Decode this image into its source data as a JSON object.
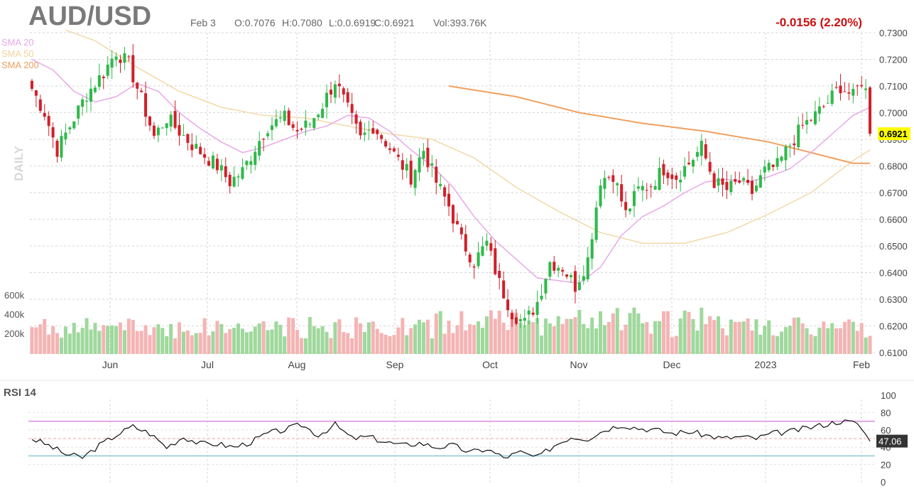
{
  "header": {
    "symbol": "AUD/USD",
    "date": "Feb 3",
    "open": "O:0.7076",
    "high": "H:0.7080",
    "low": "L:0.0.6919",
    "close": "C:0.6921",
    "volume": "Vol:393.76K",
    "change": "-0.0156 (2.20%)",
    "timeframe": "DAILY"
  },
  "legend": [
    {
      "label": "SMA 20",
      "color": "#e8a8e8"
    },
    {
      "label": "SMA 50",
      "color": "#f2d9a8"
    },
    {
      "label": "SMA 200",
      "color": "#f0a060"
    }
  ],
  "colors": {
    "up": "#2fb84a",
    "down": "#d0202a",
    "vol_up": "#9fd89c",
    "vol_down": "#f4b4b4",
    "rsi_line": "#111111",
    "rsi_overbought": "#d98de0",
    "rsi_oversold": "#8cc8d8",
    "last_price_bg": "#ffff00",
    "change_text": "#cc1111"
  },
  "volume_axis": [
    "600k",
    "400k",
    "200k"
  ],
  "rsi": {
    "title": "RSI 14",
    "last_value": "47.06",
    "levels": [
      "100",
      "80",
      "60",
      "40",
      "20",
      "0"
    ]
  },
  "chart_data": {
    "type": "candlestick",
    "title": "AUD/USD",
    "ylim": [
      0.61,
      0.73
    ],
    "y_ticks": [
      "0.7300",
      "0.7200",
      "0.7100",
      "0.7000",
      "0.6900",
      "0.6800",
      "0.6700",
      "0.6600",
      "0.6500",
      "0.6400",
      "0.6300",
      "0.6200",
      "0.6100"
    ],
    "last_price": "0.6921",
    "x_labels": [
      "Jun",
      "Jul",
      "Aug",
      "Sep",
      "Oct",
      "Nov",
      "Dec",
      "2023",
      "Feb"
    ],
    "close_path": [
      [
        0,
        0.709
      ],
      [
        3,
        0.7
      ],
      [
        6,
        0.686
      ],
      [
        9,
        0.695
      ],
      [
        13,
        0.707
      ],
      [
        17,
        0.715
      ],
      [
        20,
        0.723
      ],
      [
        23,
        0.718
      ],
      [
        26,
        0.705
      ],
      [
        29,
        0.691
      ],
      [
        32,
        0.698
      ],
      [
        35,
        0.693
      ],
      [
        38,
        0.688
      ],
      [
        41,
        0.684
      ],
      [
        44,
        0.68
      ],
      [
        47,
        0.674
      ],
      [
        50,
        0.678
      ],
      [
        53,
        0.687
      ],
      [
        56,
        0.695
      ],
      [
        60,
        0.698
      ],
      [
        63,
        0.693
      ],
      [
        66,
        0.696
      ],
      [
        69,
        0.703
      ],
      [
        72,
        0.712
      ],
      [
        75,
        0.701
      ],
      [
        78,
        0.69
      ],
      [
        81,
        0.695
      ],
      [
        84,
        0.689
      ],
      [
        87,
        0.682
      ],
      [
        90,
        0.676
      ],
      [
        93,
        0.686
      ],
      [
        96,
        0.674
      ],
      [
        99,
        0.665
      ],
      [
        102,
        0.652
      ],
      [
        105,
        0.644
      ],
      [
        108,
        0.651
      ],
      [
        111,
        0.636
      ],
      [
        114,
        0.625
      ],
      [
        117,
        0.621
      ],
      [
        120,
        0.629
      ],
      [
        123,
        0.644
      ],
      [
        126,
        0.642
      ],
      [
        129,
        0.635
      ],
      [
        132,
        0.645
      ],
      [
        135,
        0.675
      ],
      [
        138,
        0.677
      ],
      [
        141,
        0.662
      ],
      [
        144,
        0.671
      ],
      [
        147,
        0.673
      ],
      [
        150,
        0.679
      ],
      [
        153,
        0.676
      ],
      [
        156,
        0.681
      ],
      [
        159,
        0.687
      ],
      [
        162,
        0.674
      ],
      [
        165,
        0.671
      ],
      [
        168,
        0.674
      ],
      [
        171,
        0.67
      ],
      [
        174,
        0.678
      ],
      [
        177,
        0.68
      ],
      [
        180,
        0.688
      ],
      [
        183,
        0.695
      ],
      [
        186,
        0.699
      ],
      [
        189,
        0.704
      ],
      [
        192,
        0.71
      ],
      [
        195,
        0.706
      ],
      [
        197,
        0.712
      ],
      [
        198,
        0.708
      ],
      [
        199,
        0.6921
      ]
    ],
    "sma20": [
      [
        0,
        0.72
      ],
      [
        5,
        0.716
      ],
      [
        10,
        0.708
      ],
      [
        15,
        0.704
      ],
      [
        20,
        0.706
      ],
      [
        25,
        0.711
      ],
      [
        30,
        0.708
      ],
      [
        35,
        0.7
      ],
      [
        40,
        0.694
      ],
      [
        45,
        0.689
      ],
      [
        50,
        0.685
      ],
      [
        55,
        0.687
      ],
      [
        60,
        0.69
      ],
      [
        65,
        0.693
      ],
      [
        70,
        0.695
      ],
      [
        75,
        0.699
      ],
      [
        80,
        0.698
      ],
      [
        85,
        0.693
      ],
      [
        90,
        0.686
      ],
      [
        95,
        0.68
      ],
      [
        100,
        0.672
      ],
      [
        105,
        0.661
      ],
      [
        110,
        0.652
      ],
      [
        115,
        0.645
      ],
      [
        120,
        0.638
      ],
      [
        125,
        0.637
      ],
      [
        130,
        0.636
      ],
      [
        135,
        0.642
      ],
      [
        140,
        0.654
      ],
      [
        145,
        0.661
      ],
      [
        150,
        0.665
      ],
      [
        155,
        0.67
      ],
      [
        160,
        0.674
      ],
      [
        165,
        0.675
      ],
      [
        170,
        0.674
      ],
      [
        175,
        0.676
      ],
      [
        180,
        0.679
      ],
      [
        185,
        0.685
      ],
      [
        190,
        0.692
      ],
      [
        195,
        0.699
      ],
      [
        199,
        0.702
      ]
    ],
    "sma50": [
      [
        8,
        0.731
      ],
      [
        15,
        0.727
      ],
      [
        25,
        0.717
      ],
      [
        35,
        0.708
      ],
      [
        45,
        0.702
      ],
      [
        55,
        0.699
      ],
      [
        65,
        0.698
      ],
      [
        75,
        0.695
      ],
      [
        85,
        0.692
      ],
      [
        95,
        0.69
      ],
      [
        105,
        0.683
      ],
      [
        115,
        0.672
      ],
      [
        125,
        0.663
      ],
      [
        135,
        0.655
      ],
      [
        145,
        0.651
      ],
      [
        155,
        0.651
      ],
      [
        165,
        0.655
      ],
      [
        175,
        0.662
      ],
      [
        185,
        0.67
      ],
      [
        195,
        0.682
      ],
      [
        199,
        0.686
      ]
    ],
    "sma200": [
      [
        99,
        0.71
      ],
      [
        115,
        0.706
      ],
      [
        130,
        0.7
      ],
      [
        145,
        0.696
      ],
      [
        160,
        0.693
      ],
      [
        175,
        0.689
      ],
      [
        185,
        0.685
      ],
      [
        195,
        0.681
      ],
      [
        199,
        0.681
      ]
    ],
    "rsi_path": [
      [
        0,
        50
      ],
      [
        4,
        42
      ],
      [
        8,
        32
      ],
      [
        12,
        28
      ],
      [
        16,
        42
      ],
      [
        20,
        54
      ],
      [
        24,
        64
      ],
      [
        28,
        56
      ],
      [
        32,
        40
      ],
      [
        36,
        52
      ],
      [
        40,
        44
      ],
      [
        44,
        44
      ],
      [
        48,
        40
      ],
      [
        52,
        46
      ],
      [
        56,
        56
      ],
      [
        60,
        60
      ],
      [
        64,
        66
      ],
      [
        68,
        54
      ],
      [
        72,
        66
      ],
      [
        76,
        50
      ],
      [
        80,
        52
      ],
      [
        84,
        46
      ],
      [
        88,
        42
      ],
      [
        92,
        45
      ],
      [
        96,
        40
      ],
      [
        100,
        42
      ],
      [
        104,
        34
      ],
      [
        108,
        38
      ],
      [
        112,
        28
      ],
      [
        116,
        34
      ],
      [
        120,
        28
      ],
      [
        124,
        42
      ],
      [
        128,
        52
      ],
      [
        132,
        50
      ],
      [
        136,
        60
      ],
      [
        140,
        66
      ],
      [
        144,
        62
      ],
      [
        148,
        60
      ],
      [
        152,
        56
      ],
      [
        156,
        58
      ],
      [
        160,
        54
      ],
      [
        164,
        50
      ],
      [
        168,
        52
      ],
      [
        172,
        50
      ],
      [
        176,
        56
      ],
      [
        180,
        58
      ],
      [
        184,
        62
      ],
      [
        188,
        66
      ],
      [
        192,
        70
      ],
      [
        196,
        68
      ],
      [
        199,
        47
      ]
    ]
  }
}
